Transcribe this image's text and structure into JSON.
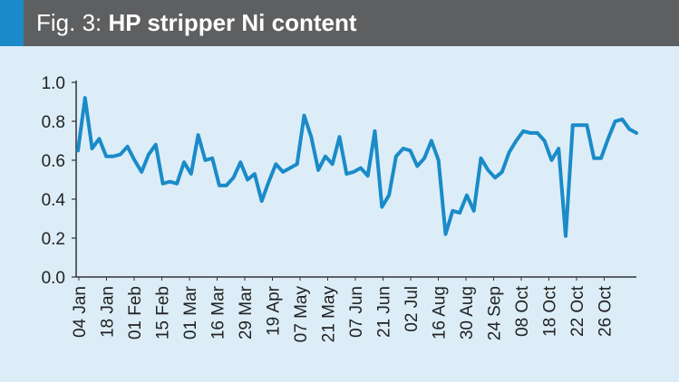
{
  "header": {
    "fig_label": "Fig. 3:",
    "title": "HP stripper Ni content"
  },
  "colors": {
    "header_bg": "#5e5f61",
    "accent": "#1a8bc8",
    "plot_bg": "#dcedf8",
    "line": "#1a8bc8",
    "axis": "#333333"
  },
  "chart_data": {
    "type": "line",
    "title": "HP stripper Ni content",
    "xlabel": "",
    "ylabel": "",
    "ylim": [
      0,
      1.0
    ],
    "grid": false,
    "legend": "none",
    "yticks": [
      "0.0",
      "0.2",
      "0.4",
      "0.6",
      "0.8",
      "1.0"
    ],
    "xticks": [
      "04 Jan",
      "18 Jan",
      "01 Feb",
      "15 Feb",
      "01 Mar",
      "16 Mar",
      "29 Mar",
      "19 Apr",
      "07 May",
      "21 May",
      "07 Jun",
      "21 Jun",
      "02 Jul",
      "16 Aug",
      "30 Aug",
      "24 Sep",
      "08 Oct",
      "18 Oct",
      "22 Oct",
      "26 Oct"
    ],
    "series": [
      {
        "values": [
          0.65,
          0.92,
          0.66,
          0.71,
          0.62,
          0.62,
          0.63,
          0.67,
          0.6,
          0.54,
          0.63,
          0.68,
          0.48,
          0.49,
          0.48,
          0.59,
          0.53,
          0.73,
          0.6,
          0.61,
          0.47,
          0.47,
          0.51,
          0.59,
          0.5,
          0.53,
          0.39,
          0.49,
          0.58,
          0.54,
          0.56,
          0.58,
          0.83,
          0.72,
          0.55,
          0.62,
          0.58,
          0.72,
          0.53,
          0.54,
          0.56,
          0.52,
          0.75,
          0.36,
          0.42,
          0.62,
          0.66,
          0.65,
          0.57,
          0.61,
          0.7,
          0.6,
          0.22,
          0.34,
          0.33,
          0.42,
          0.34,
          0.61,
          0.55,
          0.51,
          0.54,
          0.64,
          0.7,
          0.75,
          0.74,
          0.74,
          0.7,
          0.6,
          0.66,
          0.21,
          0.78,
          0.78,
          0.78,
          0.61,
          0.61,
          0.71,
          0.8,
          0.81,
          0.76,
          0.74
        ]
      }
    ]
  }
}
